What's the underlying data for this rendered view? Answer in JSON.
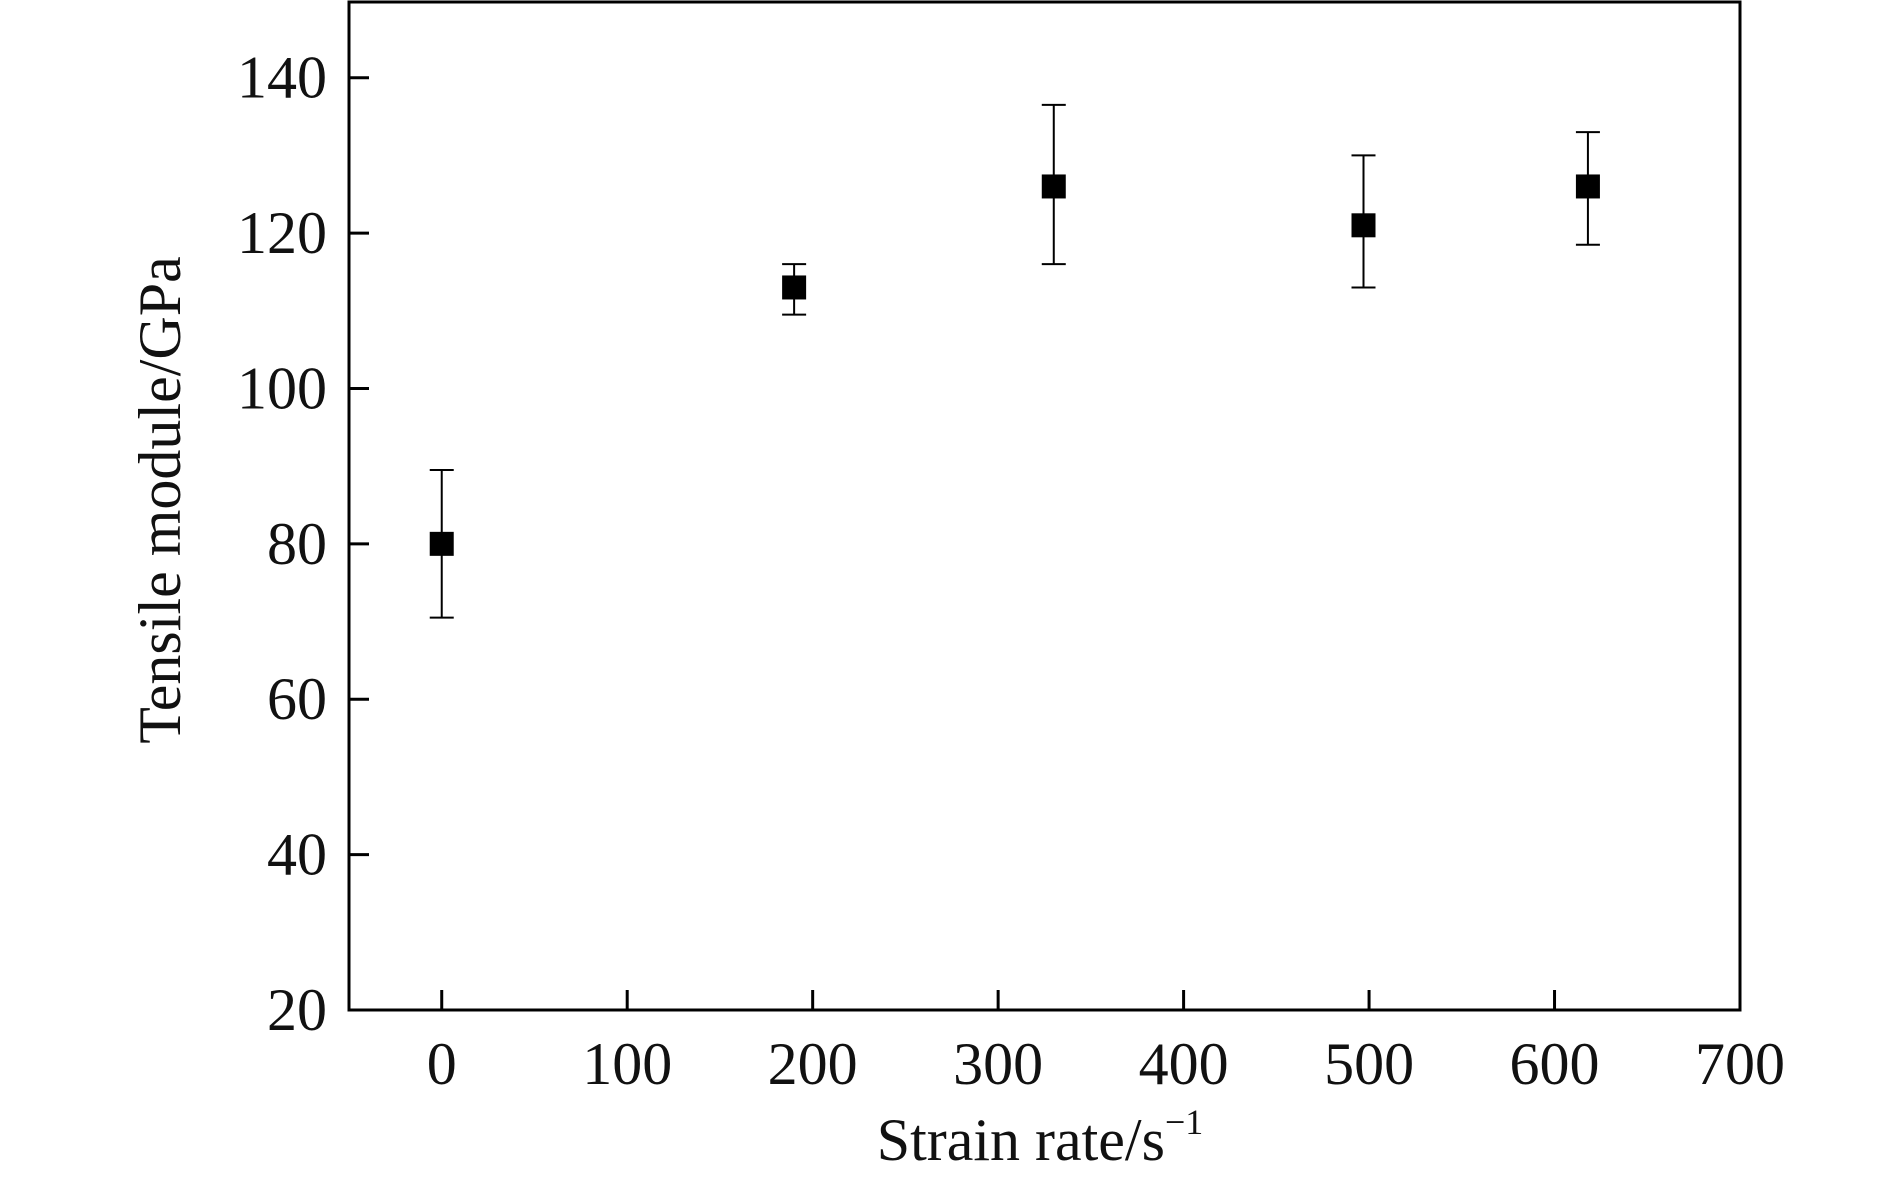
{
  "chart_data": {
    "type": "scatter",
    "xlabel": "Strain rate/s",
    "xlabel_superscript": "−1",
    "ylabel": "Tensile module/GPa",
    "xlim": [
      -50,
      700
    ],
    "ylim": [
      20,
      150
    ],
    "x_ticks": [
      0,
      100,
      200,
      300,
      400,
      500,
      600,
      700
    ],
    "y_ticks": [
      20,
      40,
      60,
      80,
      100,
      120,
      140
    ],
    "grid": false,
    "legend": "none",
    "marker": "square",
    "marker_color": "#000000",
    "series": [
      {
        "points": [
          {
            "x": 0,
            "y": 80,
            "y_err_low": 70.5,
            "y_err_high": 89.5
          },
          {
            "x": 190,
            "y": 113,
            "y_err_low": 109.5,
            "y_err_high": 116
          },
          {
            "x": 330,
            "y": 126,
            "y_err_low": 116,
            "y_err_high": 136.5
          },
          {
            "x": 497,
            "y": 121,
            "y_err_low": 113,
            "y_err_high": 130
          },
          {
            "x": 618,
            "y": 126,
            "y_err_low": 118.5,
            "y_err_high": 133
          }
        ]
      }
    ]
  }
}
